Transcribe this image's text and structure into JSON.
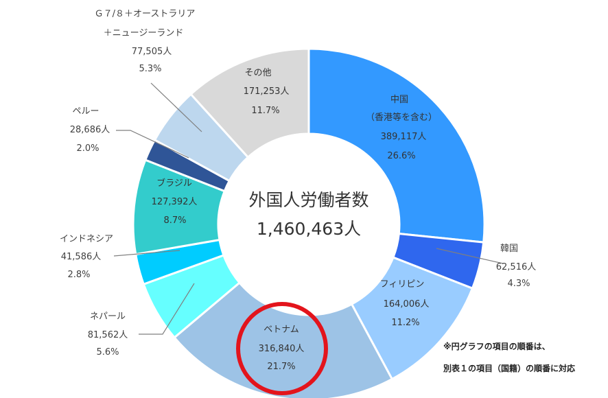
{
  "chart_data": {
    "type": "pie",
    "variant": "donut",
    "center": {
      "title": "外国人労働者数",
      "total": "1,460,463人"
    },
    "slices": [
      {
        "name": "中国",
        "name2": "（香港等を含む）",
        "count": "389,117人",
        "percent": 26.6,
        "percent_label": "26.6%",
        "color": "#3399ff",
        "label_inside": true
      },
      {
        "name": "韓国",
        "count": "62,516人",
        "percent": 4.3,
        "percent_label": "4.3%",
        "color": "#2f67ee",
        "label_inside": false
      },
      {
        "name": "フィリピン",
        "count": "164,006人",
        "percent": 11.2,
        "percent_label": "11.2%",
        "color": "#99ccff",
        "label_inside": true
      },
      {
        "name": "ベトナム",
        "count": "316,840人",
        "percent": 21.7,
        "percent_label": "21.7%",
        "color": "#9dc3e6",
        "label_inside": true,
        "highlighted": true
      },
      {
        "name": "ネパール",
        "count": "81,562人",
        "percent": 5.6,
        "percent_label": "5.6%",
        "color": "#66ffff",
        "label_inside": false
      },
      {
        "name": "インドネシア",
        "count": "41,586人",
        "percent": 2.8,
        "percent_label": "2.8%",
        "color": "#00ccff",
        "label_inside": false
      },
      {
        "name": "ブラジル",
        "count": "127,392人",
        "percent": 8.7,
        "percent_label": "8.7%",
        "color": "#33cccc",
        "label_inside": true
      },
      {
        "name": "ペルー",
        "count": "28,686人",
        "percent": 2.0,
        "percent_label": "2.0%",
        "color": "#2f5597",
        "label_inside": false
      },
      {
        "name": "Ｇ７/８＋オーストラリア",
        "name2": "＋ニュージーランド",
        "count": "77,505人",
        "percent": 5.3,
        "percent_label": "5.3%",
        "color": "#bdd7ee",
        "label_inside": false
      },
      {
        "name": "その他",
        "count": "171,253人",
        "percent": 11.7,
        "percent_label": "11.7%",
        "color": "#d9d9d9",
        "label_inside": true
      }
    ],
    "highlight": {
      "target": "ベトナム",
      "color": "#e3141c"
    },
    "note": [
      "※円グラフの項目の順番は、",
      "別表１の項目（国籍）の順番に対応"
    ]
  }
}
